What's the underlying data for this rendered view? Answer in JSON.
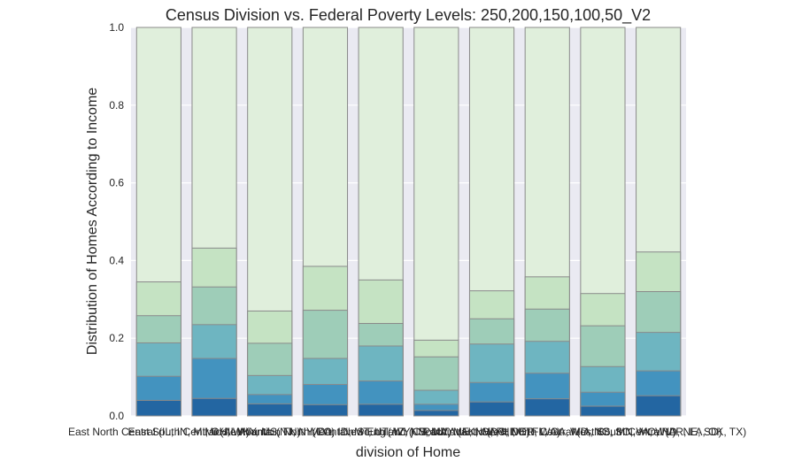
{
  "chart_data": {
    "type": "bar",
    "stacked": true,
    "title": "Census Division vs. Federal Poverty Levels: 250,200,150,100,50_V2",
    "xlabel": "division of Home",
    "ylabel": "Distribution of Homes According to Income",
    "ylim": [
      0,
      1.0
    ],
    "yticks": [
      "0.0",
      "0.2",
      "0.4",
      "0.6",
      "0.8",
      "1.0"
    ],
    "grid": true,
    "categories": [
      "East North Central (IL, IN, MI, OH, WI)",
      "East South Central (AL, KY, MS, TN)",
      "Middle Atlantic (NJ, NY, PA)",
      "Mountain North (CO, ID, MT, UT, WY)",
      "Mountain South (AZ, NM, NV)",
      "New England (CT, MA, ME, NH, RI, VT)",
      "Pacific (AK, CA, HI, OR, WA)",
      "South Atlantic (DC, DE, FL, GA, MD, NC, SC, VA, WV)",
      "West North Central (IA, KS, MN, MO, ND, NE, SD)",
      "West South Central (AR, LA, OK, TX)"
    ],
    "category_labels": [
      "East North Central (IL, IN, MI, OH, WI)",
      "East South Central (AL, KY, MS, TN)",
      "Middle Atlantic (NJ, NY, PA)",
      "Mountain North (CO, ID, MT, UT, WY)",
      "Mountain South (AZ, NM, NV)",
      "New England (CT, MA, ME, NH, RI, VT)",
      "Pacific (AK, CA, HI, OR, WA)",
      "South Atlantic (DC, DE, FL, GA, MD, NC, SC, VA, WV)",
      "West North Central (IA, KS, MN, MO, ND, NE, SD)",
      "West South Central (AR, LA, OK, TX)"
    ],
    "cumulative_series": [
      {
        "color": "#e0efdc",
        "values": [
          1.0,
          1.0,
          1.0,
          1.0,
          1.0,
          1.0,
          1.0,
          1.0,
          1.0,
          1.0
        ]
      },
      {
        "color": "#c5e3c3",
        "values": [
          0.345,
          0.432,
          0.27,
          0.385,
          0.35,
          0.195,
          0.322,
          0.358,
          0.315,
          0.422
        ]
      },
      {
        "color": "#9ecdb8",
        "values": [
          0.258,
          0.332,
          0.187,
          0.272,
          0.238,
          0.152,
          0.25,
          0.275,
          0.232,
          0.32
        ]
      },
      {
        "color": "#6eb5c1",
        "values": [
          0.188,
          0.235,
          0.104,
          0.148,
          0.18,
          0.066,
          0.185,
          0.192,
          0.127,
          0.215
        ]
      },
      {
        "color": "#4393bf",
        "values": [
          0.102,
          0.148,
          0.055,
          0.081,
          0.09,
          0.03,
          0.086,
          0.11,
          0.061,
          0.116
        ]
      },
      {
        "color": "#2366a2",
        "values": [
          0.04,
          0.045,
          0.031,
          0.029,
          0.03,
          0.014,
          0.036,
          0.044,
          0.025,
          0.052
        ]
      }
    ],
    "colors": {
      "plot_background": "#eaeaf2",
      "grid": "#ffffff",
      "bar_edge": "#8a8a8a"
    }
  }
}
